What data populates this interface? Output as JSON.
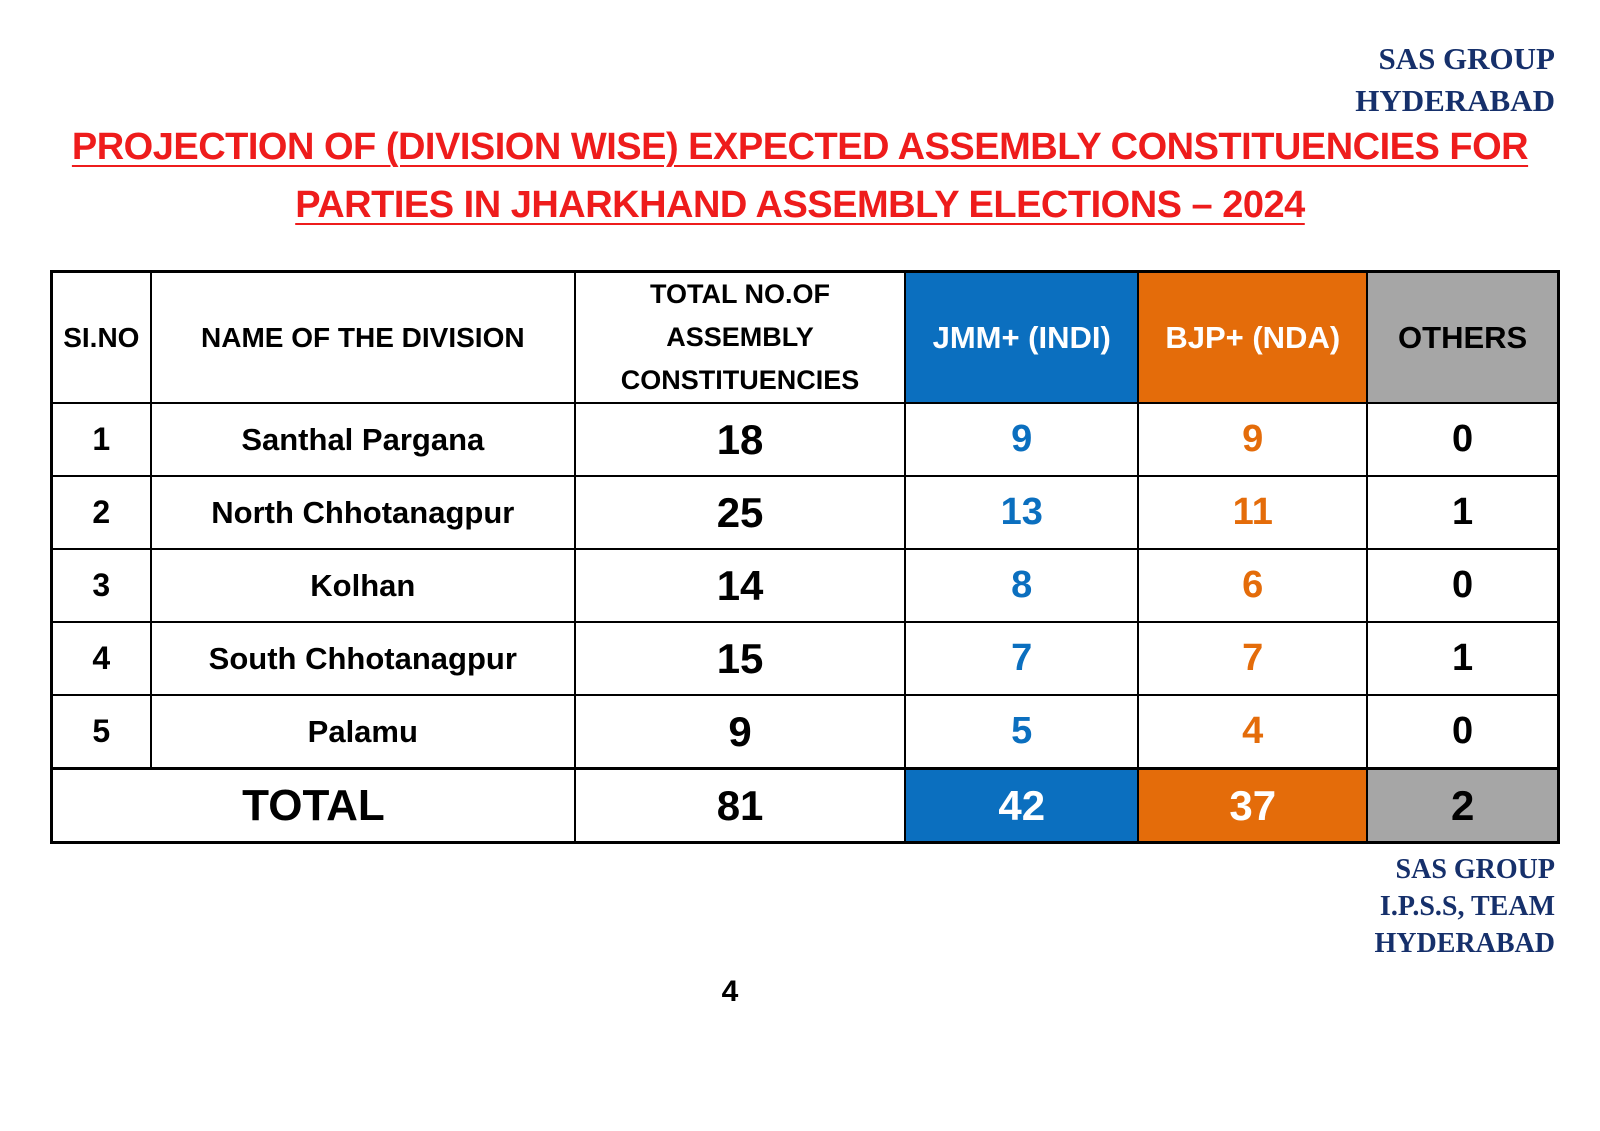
{
  "header": {
    "org_line1": "SAS GROUP",
    "org_line2": "HYDERABAD"
  },
  "title": {
    "line1": "PROJECTION OF (DIVISION WISE) EXPECTED ASSEMBLY CONSTITUENCIES FOR",
    "line2": "PARTIES IN JHARKHAND ASSEMBLY ELECTIONS – 2024"
  },
  "colors": {
    "title_red": "#ee1c1c",
    "org_navy": "#16306b",
    "jmm_blue": "#0b6fbf",
    "bjp_orange": "#e46c0a",
    "others_gray": "#a6a6a6"
  },
  "table": {
    "headers": {
      "sl": "SI.NO",
      "name": "NAME OF THE DIVISION",
      "total_line1": "TOTAL NO.OF",
      "total_line2": "ASSEMBLY",
      "total_line3": "CONSTITUENCIES",
      "jmm": "JMM+ (INDI)",
      "bjp": "BJP+ (NDA)",
      "others": "OTHERS"
    },
    "rows": [
      {
        "sl": "1",
        "name": "Santhal Pargana",
        "total": "18",
        "jmm": "9",
        "bjp": "9",
        "others": "0"
      },
      {
        "sl": "2",
        "name": "North Chhotanagpur",
        "total": "25",
        "jmm": "13",
        "bjp": "11",
        "others": "1"
      },
      {
        "sl": "3",
        "name": "Kolhan",
        "total": "14",
        "jmm": "8",
        "bjp": "6",
        "others": "0"
      },
      {
        "sl": "4",
        "name": "South Chhotanagpur",
        "total": "15",
        "jmm": "7",
        "bjp": "7",
        "others": "1"
      },
      {
        "sl": "5",
        "name": "Palamu",
        "total": "9",
        "jmm": "5",
        "bjp": "4",
        "others": "0"
      }
    ],
    "totals": {
      "label": "TOTAL",
      "total": "81",
      "jmm": "42",
      "bjp": "37",
      "others": "2"
    }
  },
  "footer": {
    "org_line1": "SAS GROUP",
    "org_line2": "I.P.S.S, TEAM",
    "org_line3": "HYDERABAD",
    "page_number": "4"
  }
}
